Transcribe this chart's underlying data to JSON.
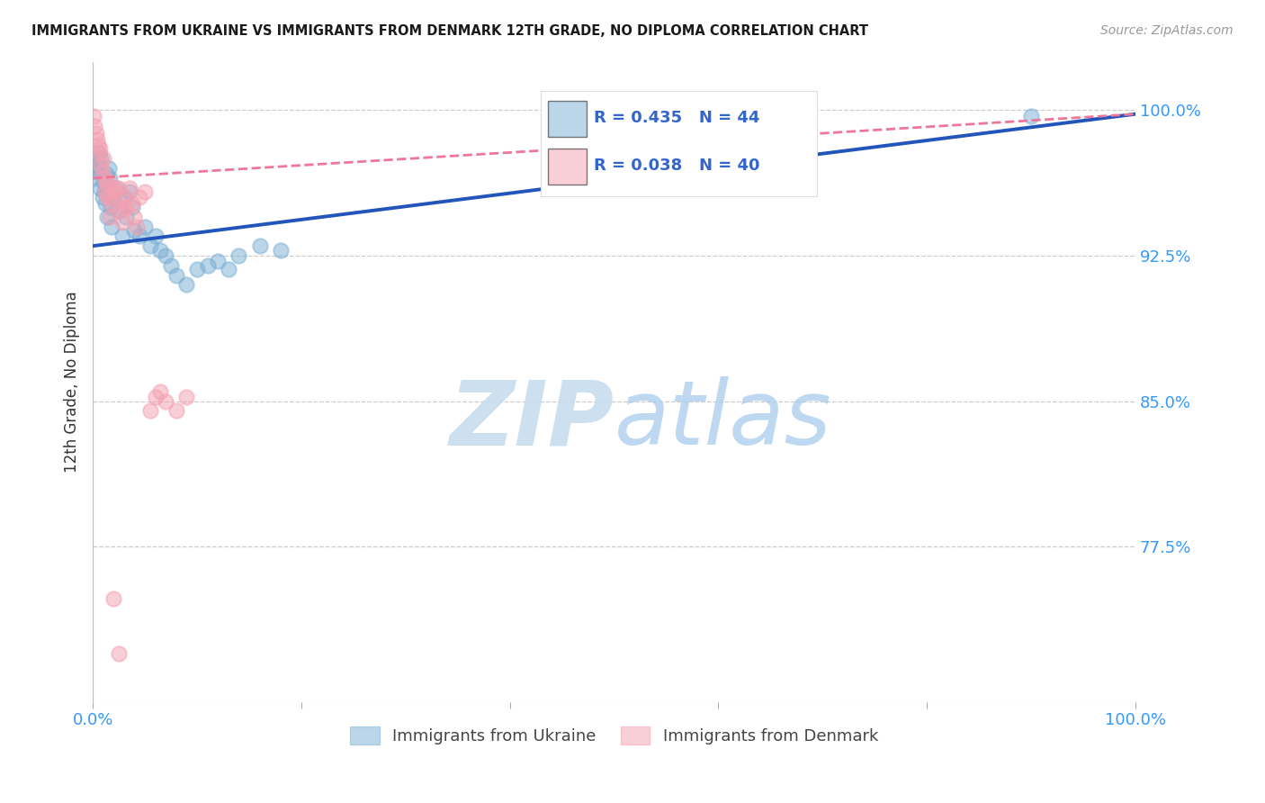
{
  "title": "IMMIGRANTS FROM UKRAINE VS IMMIGRANTS FROM DENMARK 12TH GRADE, NO DIPLOMA CORRELATION CHART",
  "source": "Source: ZipAtlas.com",
  "ylabel": "12th Grade, No Diploma",
  "watermark_zip": "ZIP",
  "watermark_atlas": "atlas",
  "legend_ukraine": "Immigrants from Ukraine",
  "legend_denmark": "Immigrants from Denmark",
  "R_ukraine": 0.435,
  "N_ukraine": 44,
  "R_denmark": 0.038,
  "N_denmark": 40,
  "ukraine_color": "#7BAFD4",
  "denmark_color": "#F4A0B0",
  "ukraine_line_color": "#2255BB",
  "denmark_line_color": "#EE7799",
  "xlim_min": 0.0,
  "xlim_max": 1.0,
  "ylim_min": 0.695,
  "ylim_max": 1.025,
  "yticks": [
    0.775,
    0.85,
    0.925,
    1.0
  ],
  "ytick_labels": [
    "77.5%",
    "85.0%",
    "92.5%",
    "100.0%"
  ],
  "xtick_positions": [
    0.0,
    0.2,
    0.4,
    0.6,
    0.8,
    1.0
  ],
  "xtick_labels": [
    "0.0%",
    "",
    "",
    "",
    "",
    "100.0%"
  ],
  "ukraine_x": [
    0.001,
    0.002,
    0.003,
    0.004,
    0.005,
    0.006,
    0.007,
    0.008,
    0.009,
    0.01,
    0.011,
    0.012,
    0.013,
    0.014,
    0.015,
    0.016,
    0.017,
    0.018,
    0.02,
    0.022,
    0.025,
    0.028,
    0.03,
    0.032,
    0.035,
    0.038,
    0.04,
    0.045,
    0.05,
    0.055,
    0.06,
    0.065,
    0.07,
    0.075,
    0.08,
    0.09,
    0.1,
    0.11,
    0.12,
    0.13,
    0.14,
    0.16,
    0.18,
    0.9
  ],
  "ukraine_y": [
    0.965,
    0.972,
    0.968,
    0.975,
    0.97,
    0.978,
    0.96,
    0.975,
    0.955,
    0.963,
    0.958,
    0.952,
    0.967,
    0.945,
    0.97,
    0.965,
    0.95,
    0.94,
    0.955,
    0.96,
    0.948,
    0.935,
    0.955,
    0.945,
    0.958,
    0.95,
    0.938,
    0.935,
    0.94,
    0.93,
    0.935,
    0.928,
    0.925,
    0.92,
    0.915,
    0.91,
    0.918,
    0.92,
    0.922,
    0.918,
    0.925,
    0.93,
    0.928,
    0.997
  ],
  "denmark_x": [
    0.001,
    0.002,
    0.003,
    0.004,
    0.005,
    0.006,
    0.007,
    0.008,
    0.009,
    0.01,
    0.011,
    0.012,
    0.013,
    0.014,
    0.015,
    0.016,
    0.017,
    0.018,
    0.02,
    0.022,
    0.025,
    0.028,
    0.03,
    0.032,
    0.035,
    0.038,
    0.04,
    0.042,
    0.045,
    0.05,
    0.055,
    0.06,
    0.065,
    0.07,
    0.08,
    0.09,
    0.02,
    0.025,
    0.025,
    0.03
  ],
  "denmark_y": [
    0.997,
    0.992,
    0.988,
    0.985,
    0.982,
    0.978,
    0.98,
    0.972,
    0.968,
    0.975,
    0.965,
    0.958,
    0.962,
    0.955,
    0.963,
    0.945,
    0.955,
    0.952,
    0.96,
    0.958,
    0.948,
    0.942,
    0.955,
    0.95,
    0.96,
    0.952,
    0.945,
    0.94,
    0.955,
    0.958,
    0.845,
    0.852,
    0.855,
    0.85,
    0.845,
    0.852,
    0.748,
    0.72,
    0.96,
    0.95
  ],
  "background_color": "#FFFFFF",
  "grid_color": "#CCCCCC"
}
